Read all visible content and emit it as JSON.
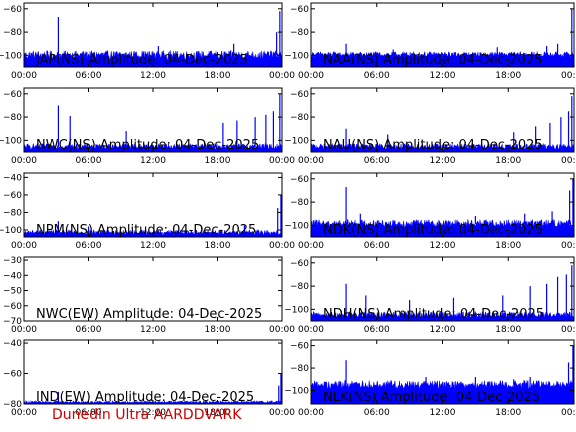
{
  "figure": {
    "footer": "Dunedin Ultra AARDDVARK"
  },
  "colors": {
    "signal": "#0000ff",
    "axes": "#000000",
    "footer": "#cc0000",
    "background": "#ffffff"
  },
  "chart_data": [
    {
      "type": "area",
      "title": "JAP(NS) Amplitude: 04-Dec-2025",
      "x_ticks": [
        "00:00",
        "06:00",
        "12:00",
        "18:00",
        "00:00"
      ],
      "xlim": [
        0,
        24
      ],
      "ylim": [
        -110,
        -55
      ],
      "y_ticks": [
        -100,
        -80,
        -60
      ],
      "floor_level": -100,
      "floor_min": -104,
      "floor_max": -96,
      "spikes": [
        {
          "x": 3.2,
          "y": -67
        },
        {
          "x": 12.5,
          "y": -92
        },
        {
          "x": 19.5,
          "y": -90
        },
        {
          "x": 23.5,
          "y": -80
        },
        {
          "x": 23.8,
          "y": -62
        }
      ]
    },
    {
      "type": "area",
      "title": "NAA(NS) Amplitude: 04-Dec-2025",
      "x_ticks": [
        "00:00",
        "06:00",
        "12:00",
        "18:00",
        "00:00"
      ],
      "xlim": [
        0,
        24
      ],
      "ylim": [
        -110,
        -55
      ],
      "y_ticks": [
        -100,
        -80,
        -60
      ],
      "floor_level": -100,
      "floor_min": -102,
      "floor_max": -97,
      "spikes": [
        {
          "x": 3.2,
          "y": -90
        },
        {
          "x": 7.5,
          "y": -95
        },
        {
          "x": 17.0,
          "y": -93
        },
        {
          "x": 21.5,
          "y": -92
        },
        {
          "x": 22.5,
          "y": -90
        },
        {
          "x": 23.8,
          "y": -60
        }
      ]
    },
    {
      "type": "area",
      "title": "NWC(NS) Amplitude: 04-Dec-2025",
      "x_ticks": [
        "00:00",
        "06:00",
        "12:00",
        "18:00",
        "00:00"
      ],
      "xlim": [
        0,
        24
      ],
      "ylim": [
        -110,
        -55
      ],
      "y_ticks": [
        -100,
        -80,
        -60
      ],
      "floor_level": -106,
      "floor_min": -108,
      "floor_max": -103,
      "spikes": [
        {
          "x": 3.2,
          "y": -70
        },
        {
          "x": 4.3,
          "y": -79
        },
        {
          "x": 9.5,
          "y": -92
        },
        {
          "x": 18.5,
          "y": -85
        },
        {
          "x": 19.8,
          "y": -83
        },
        {
          "x": 21.5,
          "y": -80
        },
        {
          "x": 22.5,
          "y": -78
        },
        {
          "x": 23.2,
          "y": -75
        },
        {
          "x": 23.8,
          "y": -60
        }
      ]
    },
    {
      "type": "area",
      "title": "NAU(NS) Amplitude: 04-Dec-2025",
      "x_ticks": [
        "00:00",
        "06:00",
        "12:00",
        "18:00",
        "00:00"
      ],
      "xlim": [
        0,
        24
      ],
      "ylim": [
        -110,
        -55
      ],
      "y_ticks": [
        -100,
        -80,
        -60
      ],
      "floor_level": -106,
      "floor_min": -108,
      "floor_max": -103,
      "spikes": [
        {
          "x": 3.2,
          "y": -90
        },
        {
          "x": 7.0,
          "y": -95
        },
        {
          "x": 18.5,
          "y": -93
        },
        {
          "x": 20.5,
          "y": -88
        },
        {
          "x": 21.8,
          "y": -85
        },
        {
          "x": 22.8,
          "y": -80
        },
        {
          "x": 23.5,
          "y": -75
        },
        {
          "x": 23.8,
          "y": -62
        }
      ]
    },
    {
      "type": "area",
      "title": "NPM(NS) Amplitude: 04-Dec-2025",
      "x_ticks": [
        "00:00",
        "06:00",
        "12:00",
        "18:00",
        "00:00"
      ],
      "xlim": [
        0,
        24
      ],
      "ylim": [
        -108,
        -35
      ],
      "y_ticks": [
        -100,
        -80,
        -60,
        -40
      ],
      "floor_level": -104,
      "floor_min": -106,
      "floor_max": -100,
      "spikes": [
        {
          "x": 3.2,
          "y": -90
        },
        {
          "x": 6.0,
          "y": -96
        },
        {
          "x": 20.5,
          "y": -95
        },
        {
          "x": 23.6,
          "y": -75
        },
        {
          "x": 23.9,
          "y": -60
        }
      ]
    },
    {
      "type": "area",
      "title": "NDK(NS) Amplitude: 04-Dec-2025",
      "x_ticks": [
        "00:00",
        "06:00",
        "12:00",
        "18:00",
        "00:00"
      ],
      "xlim": [
        0,
        24
      ],
      "ylim": [
        -110,
        -55
      ],
      "y_ticks": [
        -100,
        -80,
        -60
      ],
      "floor_level": -99,
      "floor_min": -102,
      "floor_max": -95,
      "spikes": [
        {
          "x": 3.2,
          "y": -67
        },
        {
          "x": 4.5,
          "y": -90
        },
        {
          "x": 15.0,
          "y": -92
        },
        {
          "x": 19.5,
          "y": -90
        },
        {
          "x": 22.0,
          "y": -88
        },
        {
          "x": 23.6,
          "y": -70
        },
        {
          "x": 23.9,
          "y": -60
        }
      ]
    },
    {
      "type": "line",
      "title": "NWC(EW) Amplitude: 04-Dec-2025",
      "x_ticks": [
        "00:00",
        "06:00",
        "12:00",
        "18:00",
        "00:00"
      ],
      "xlim": [
        0,
        24
      ],
      "ylim": [
        -70,
        -28
      ],
      "y_ticks": [
        -70,
        -60,
        -50,
        -40,
        -30
      ],
      "floor_level": null,
      "floor_min": null,
      "floor_max": null,
      "spikes": []
    },
    {
      "type": "area",
      "title": "NDH(NS) Amplitude: 04-Dec-2025",
      "x_ticks": [
        "00:00",
        "06:00",
        "12:00",
        "18:00",
        "00:00"
      ],
      "xlim": [
        0,
        24
      ],
      "ylim": [
        -110,
        -55
      ],
      "y_ticks": [
        -100,
        -80,
        -60
      ],
      "floor_level": -106,
      "floor_min": -108,
      "floor_max": -102,
      "spikes": [
        {
          "x": 3.2,
          "y": -78
        },
        {
          "x": 5.0,
          "y": -88
        },
        {
          "x": 9.0,
          "y": -92
        },
        {
          "x": 13.0,
          "y": -90
        },
        {
          "x": 17.5,
          "y": -88
        },
        {
          "x": 20.0,
          "y": -80
        },
        {
          "x": 21.5,
          "y": -78
        },
        {
          "x": 22.5,
          "y": -72
        },
        {
          "x": 23.3,
          "y": -70
        },
        {
          "x": 23.8,
          "y": -62
        }
      ]
    },
    {
      "type": "area",
      "title": "IND(EW) Amplitude: 04-Dec-2025",
      "x_ticks": [
        "00:00",
        "06:00",
        "12:00",
        "18:00",
        "00:00"
      ],
      "xlim": [
        0,
        24
      ],
      "ylim": [
        -80,
        -38
      ],
      "y_ticks": [
        -80,
        -60,
        -40
      ],
      "floor_level": -79,
      "floor_min": -79.5,
      "floor_max": -78,
      "spikes": [
        {
          "x": 3.2,
          "y": -72
        },
        {
          "x": 23.7,
          "y": -68
        },
        {
          "x": 23.9,
          "y": -60
        }
      ]
    },
    {
      "type": "area",
      "title": "NLK(NS) Amplitude: 04-Dec-2025",
      "x_ticks": [
        "00:00",
        "06:00",
        "12:00",
        "18:00",
        "00:00"
      ],
      "xlim": [
        0,
        24
      ],
      "ylim": [
        -112,
        -55
      ],
      "y_ticks": [
        -100,
        -80,
        -60
      ],
      "floor_level": -95,
      "floor_min": -99,
      "floor_max": -91,
      "spikes": [
        {
          "x": 3.2,
          "y": -73
        },
        {
          "x": 10.5,
          "y": -88
        },
        {
          "x": 15.0,
          "y": -88
        },
        {
          "x": 18.5,
          "y": -90
        },
        {
          "x": 20.0,
          "y": -88
        },
        {
          "x": 23.5,
          "y": -75
        },
        {
          "x": 23.9,
          "y": -60
        }
      ]
    }
  ]
}
